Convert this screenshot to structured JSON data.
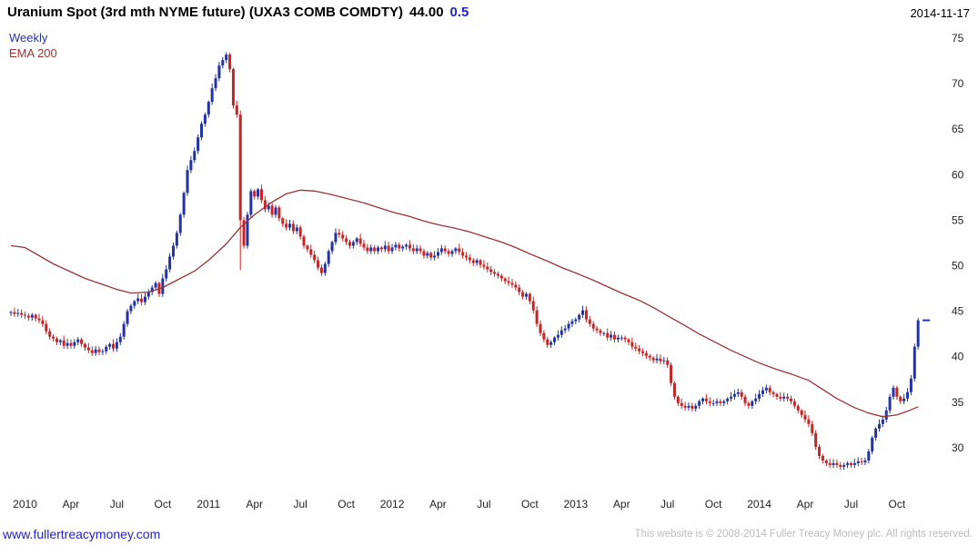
{
  "header": {
    "title": "Uranium Spot (3rd mth NYME future) (UXA3 COMB COMDTY)",
    "price": "44.00",
    "change": "0.5",
    "date": "2014-11-17"
  },
  "legend": {
    "weekly": "Weekly",
    "ema": "EMA 200"
  },
  "footer": {
    "link": "www.fullertreacymoney.com",
    "copyright": "This website is © 2008-2014 Fuller Treacy Money plc. All rights reserved."
  },
  "colors": {
    "up": "#2233aa",
    "down": "#cc2222",
    "ema": "#993333",
    "change": "#2222cc",
    "link": "#2222cc",
    "axis": "#222222",
    "text": "#000000",
    "copyright": "#bbbbbb"
  },
  "chart_data": {
    "type": "candlestick",
    "timeframe": "weekly",
    "title": "Uranium Spot (3rd mth NYME future) (UXA3 COMB COMDTY)",
    "legend": [
      "Weekly",
      "EMA 200"
    ],
    "legend_position": "top-left",
    "grid": false,
    "x_range": [
      "Dec 2009",
      "2014-11-17"
    ],
    "ylim": [
      24.7,
      76.0
    ],
    "y_ticks": [
      30,
      35,
      40,
      45,
      50,
      55,
      60,
      65,
      70,
      75
    ],
    "x_ticks": [
      {
        "i": 4,
        "t": "2010"
      },
      {
        "i": 17,
        "t": "Apr"
      },
      {
        "i": 30,
        "t": "Jul"
      },
      {
        "i": 43,
        "t": "Oct"
      },
      {
        "i": 56,
        "t": "2011"
      },
      {
        "i": 69,
        "t": "Apr"
      },
      {
        "i": 82,
        "t": "Jul"
      },
      {
        "i": 95,
        "t": "Oct"
      },
      {
        "i": 108,
        "t": "2012"
      },
      {
        "i": 121,
        "t": "Apr"
      },
      {
        "i": 134,
        "t": "Jul"
      },
      {
        "i": 147,
        "t": "Oct"
      },
      {
        "i": 160,
        "t": "2013"
      },
      {
        "i": 173,
        "t": "Apr"
      },
      {
        "i": 186,
        "t": "Jul"
      },
      {
        "i": 199,
        "t": "Oct"
      },
      {
        "i": 212,
        "t": "2014"
      },
      {
        "i": 225,
        "t": "Apr"
      },
      {
        "i": 238,
        "t": "Jul"
      },
      {
        "i": 251,
        "t": "Oct"
      }
    ],
    "open_seed": 44.8,
    "last_price": 44.0,
    "overrides": [
      {
        "i": 65,
        "low": 49.5
      }
    ],
    "closes": [
      44.9,
      44.7,
      44.8,
      44.6,
      44.5,
      44.3,
      44.6,
      44.2,
      44.0,
      43.6,
      42.8,
      42.2,
      42.0,
      41.6,
      41.8,
      41.2,
      41.5,
      41.2,
      41.6,
      41.9,
      41.4,
      41.0,
      40.7,
      40.4,
      40.8,
      40.5,
      40.6,
      41.1,
      41.4,
      40.9,
      41.6,
      42.2,
      43.6,
      45.0,
      45.6,
      46.1,
      46.4,
      46.0,
      46.6,
      47.1,
      47.6,
      48.1,
      46.9,
      48.6,
      49.6,
      51.0,
      52.2,
      53.6,
      55.6,
      58.0,
      60.5,
      61.6,
      62.6,
      64.1,
      65.6,
      66.6,
      68.0,
      69.5,
      70.6,
      72.0,
      72.6,
      73.2,
      71.6,
      67.6,
      66.6,
      55.0,
      52.2,
      55.6,
      58.2,
      57.6,
      58.4,
      57.2,
      56.2,
      56.6,
      55.6,
      56.4,
      55.2,
      54.6,
      54.2,
      54.6,
      53.8,
      54.2,
      53.2,
      52.2,
      51.8,
      51.2,
      50.6,
      49.8,
      49.2,
      50.2,
      51.6,
      52.6,
      53.6,
      53.4,
      53.0,
      52.6,
      52.2,
      52.6,
      53.0,
      52.4,
      52.0,
      51.6,
      52.0,
      51.6,
      52.0,
      51.8,
      52.2,
      51.6,
      52.0,
      52.3,
      51.9,
      52.1,
      52.3,
      51.9,
      51.6,
      51.9,
      51.6,
      51.1,
      51.4,
      50.9,
      51.1,
      51.5,
      51.9,
      51.6,
      51.3,
      51.6,
      51.9,
      51.5,
      51.1,
      50.9,
      50.6,
      50.3,
      50.6,
      50.1,
      49.9,
      49.6,
      49.3,
      49.1,
      48.9,
      48.6,
      48.3,
      48.1,
      47.9,
      47.6,
      47.1,
      46.6,
      46.9,
      46.1,
      45.1,
      43.6,
      42.6,
      41.9,
      41.3,
      41.6,
      42.1,
      42.4,
      42.9,
      43.1,
      43.6,
      43.9,
      44.1,
      44.6,
      45.1,
      44.1,
      43.6,
      43.1,
      42.9,
      42.6,
      42.6,
      42.1,
      42.4,
      41.9,
      42.1,
      42.1,
      41.9,
      41.6,
      41.1,
      40.9,
      40.6,
      40.4,
      40.1,
      39.9,
      39.6,
      39.8,
      39.5,
      39.6,
      39.1,
      37.1,
      35.6,
      34.9,
      34.6,
      34.4,
      34.6,
      34.3,
      34.6,
      35.1,
      35.4,
      35.1,
      34.9,
      34.9,
      35.1,
      34.9,
      35.1,
      35.4,
      35.6,
      35.9,
      36.1,
      35.6,
      34.9,
      34.6,
      35.1,
      35.4,
      35.9,
      36.3,
      36.6,
      36.1,
      35.9,
      35.6,
      35.4,
      35.6,
      35.4,
      35.1,
      34.6,
      34.1,
      33.6,
      33.1,
      32.6,
      31.6,
      30.1,
      29.1,
      28.6,
      28.3,
      28.1,
      28.3,
      28.1,
      27.9,
      28.1,
      28.3,
      28.1,
      28.3,
      28.5,
      28.4,
      28.6,
      29.6,
      31.1,
      32.1,
      32.6,
      33.1,
      34.1,
      35.6,
      36.6,
      35.6,
      35.1,
      35.4,
      36.1,
      37.6,
      41.1,
      44.0
    ],
    "ema_anchors": [
      [
        0,
        52.2
      ],
      [
        4,
        52.0
      ],
      [
        12,
        50.2
      ],
      [
        21,
        48.6
      ],
      [
        30,
        47.4
      ],
      [
        34,
        47.0
      ],
      [
        39,
        47.1
      ],
      [
        43,
        47.6
      ],
      [
        47,
        48.4
      ],
      [
        52,
        49.4
      ],
      [
        56,
        50.6
      ],
      [
        61,
        52.4
      ],
      [
        65,
        54.2
      ],
      [
        69,
        55.6
      ],
      [
        74,
        57.0
      ],
      [
        78,
        57.9
      ],
      [
        82,
        58.3
      ],
      [
        86,
        58.2
      ],
      [
        91,
        57.8
      ],
      [
        95,
        57.4
      ],
      [
        100,
        56.9
      ],
      [
        104,
        56.4
      ],
      [
        108,
        55.9
      ],
      [
        113,
        55.4
      ],
      [
        117,
        54.9
      ],
      [
        121,
        54.5
      ],
      [
        126,
        54.1
      ],
      [
        130,
        53.7
      ],
      [
        134,
        53.2
      ],
      [
        139,
        52.6
      ],
      [
        143,
        52.0
      ],
      [
        147,
        51.3
      ],
      [
        152,
        50.5
      ],
      [
        156,
        49.8
      ],
      [
        160,
        49.2
      ],
      [
        165,
        48.4
      ],
      [
        169,
        47.7
      ],
      [
        173,
        47.0
      ],
      [
        178,
        46.2
      ],
      [
        182,
        45.4
      ],
      [
        186,
        44.5
      ],
      [
        191,
        43.4
      ],
      [
        195,
        42.5
      ],
      [
        200,
        41.5
      ],
      [
        204,
        40.7
      ],
      [
        208,
        40.0
      ],
      [
        212,
        39.3
      ],
      [
        217,
        38.6
      ],
      [
        221,
        38.1
      ],
      [
        226,
        37.4
      ],
      [
        230,
        36.4
      ],
      [
        234,
        35.4
      ],
      [
        239,
        34.4
      ],
      [
        243,
        33.8
      ],
      [
        247,
        33.4
      ],
      [
        251,
        33.6
      ],
      [
        254,
        34.0
      ],
      [
        257,
        34.5
      ]
    ]
  }
}
